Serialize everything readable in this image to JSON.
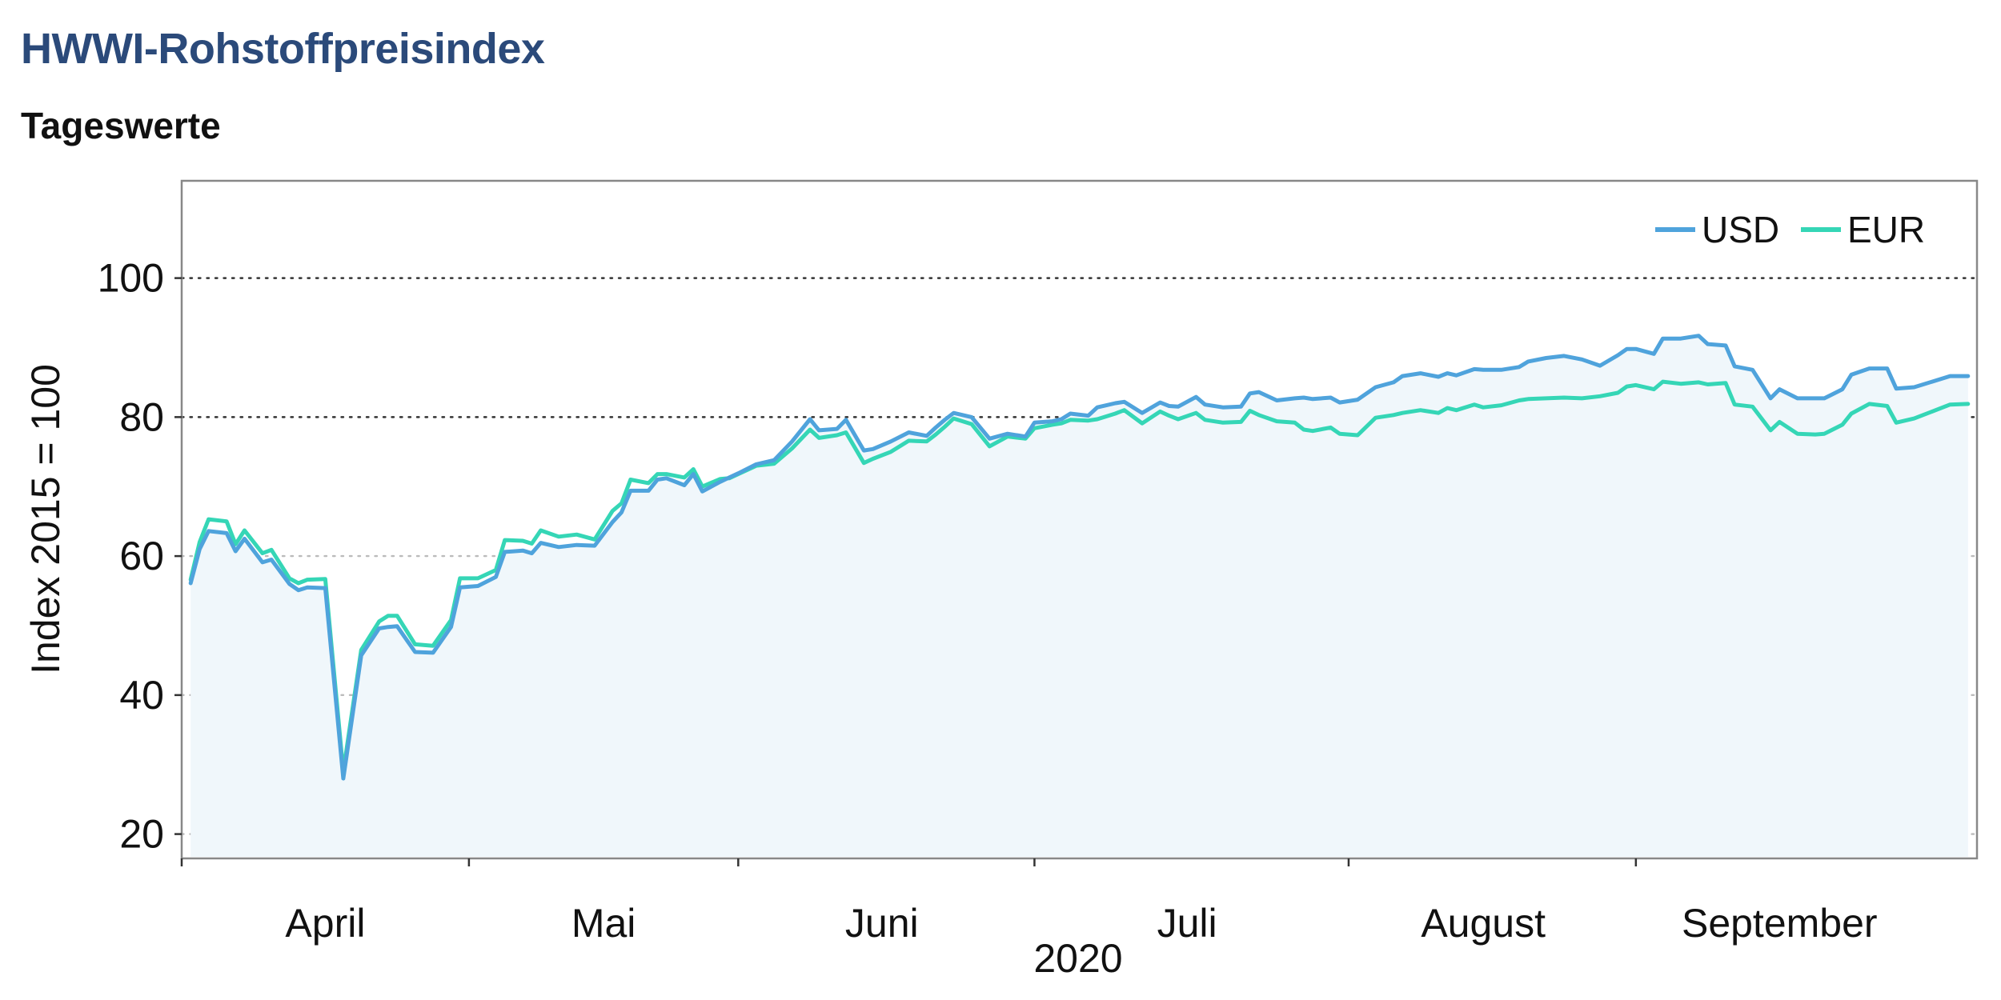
{
  "chart_data": {
    "type": "line",
    "title": "HWWI-Rohstoffpreisindex",
    "subtitle": "Tageswerte",
    "ylabel": "Index 2015 = 100",
    "xlabel": "2020",
    "ylim": [
      16.5,
      114
    ],
    "yticks": [
      20,
      40,
      60,
      80,
      100
    ],
    "xlim": [
      "2020-03-13",
      "2020-09-29"
    ],
    "x_tick_labels": [
      "April",
      "Mai",
      "Juni",
      "Juli",
      "August",
      "September"
    ],
    "x_tick_marks": [
      "2020-03-13",
      "2020-04-14",
      "2020-05-14",
      "2020-06-16",
      "2020-07-21",
      "2020-08-22"
    ],
    "x_label_dates": [
      "2020-03-29",
      "2020-04-29",
      "2020-05-30",
      "2020-07-03",
      "2020-08-05",
      "2020-09-07"
    ],
    "grid": "horizontal dotted",
    "legend": "top-right",
    "area_fill": "#f0f7fb",
    "colors": {
      "USD": "#4fa3dc",
      "EUR": "#35d6b6",
      "title": "#2b4a7a",
      "frame": "#888888"
    },
    "series": [
      {
        "name": "USD",
        "x": [
          "2020-03-14",
          "2020-03-15",
          "2020-03-16",
          "2020-03-18",
          "2020-03-19",
          "2020-03-20",
          "2020-03-22",
          "2020-03-23",
          "2020-03-25",
          "2020-03-26",
          "2020-03-27",
          "2020-03-29",
          "2020-03-31",
          "2020-04-02",
          "2020-04-04",
          "2020-04-05",
          "2020-04-06",
          "2020-04-08",
          "2020-04-10",
          "2020-04-12",
          "2020-04-13",
          "2020-04-15",
          "2020-04-17",
          "2020-04-18",
          "2020-04-20",
          "2020-04-21",
          "2020-04-22",
          "2020-04-24",
          "2020-04-26",
          "2020-04-28",
          "2020-04-30",
          "2020-05-01",
          "2020-05-02",
          "2020-05-04",
          "2020-05-05",
          "2020-05-06",
          "2020-05-08",
          "2020-05-09",
          "2020-05-10",
          "2020-05-12",
          "2020-05-13",
          "2020-05-14",
          "2020-05-16",
          "2020-05-18",
          "2020-05-20",
          "2020-05-22",
          "2020-05-23",
          "2020-05-25",
          "2020-05-26",
          "2020-05-28",
          "2020-05-29",
          "2020-05-31",
          "2020-06-02",
          "2020-06-04",
          "2020-06-05",
          "2020-06-06",
          "2020-06-07",
          "2020-06-09",
          "2020-06-11",
          "2020-06-13",
          "2020-06-15",
          "2020-06-16",
          "2020-06-18",
          "2020-06-19",
          "2020-06-20",
          "2020-06-22",
          "2020-06-23",
          "2020-06-25",
          "2020-06-26",
          "2020-06-28",
          "2020-06-30",
          "2020-07-01",
          "2020-07-02",
          "2020-07-04",
          "2020-07-05",
          "2020-07-07",
          "2020-07-09",
          "2020-07-10",
          "2020-07-11",
          "2020-07-13",
          "2020-07-15",
          "2020-07-16",
          "2020-07-17",
          "2020-07-19",
          "2020-07-20",
          "2020-07-22",
          "2020-07-24",
          "2020-07-26",
          "2020-07-27",
          "2020-07-29",
          "2020-07-31",
          "2020-08-01",
          "2020-08-02",
          "2020-08-04",
          "2020-08-05",
          "2020-08-07",
          "2020-08-09",
          "2020-08-10",
          "2020-08-12",
          "2020-08-14",
          "2020-08-16",
          "2020-08-18",
          "2020-08-20",
          "2020-08-21",
          "2020-08-22",
          "2020-08-24",
          "2020-08-25",
          "2020-08-27",
          "2020-08-29",
          "2020-08-30",
          "2020-09-01",
          "2020-09-02",
          "2020-09-04",
          "2020-09-06",
          "2020-09-07",
          "2020-09-09",
          "2020-09-11",
          "2020-09-12",
          "2020-09-14",
          "2020-09-15",
          "2020-09-17",
          "2020-09-19",
          "2020-09-20",
          "2020-09-22",
          "2020-09-24",
          "2020-09-26",
          "2020-09-28"
        ],
        "values": [
          56.1,
          61.0,
          63.6,
          63.3,
          60.7,
          62.5,
          59.1,
          59.5,
          56.0,
          55.1,
          55.5,
          55.4,
          28.0,
          45.7,
          49.6,
          49.8,
          49.9,
          46.2,
          46.1,
          49.8,
          55.5,
          55.7,
          57.0,
          60.6,
          60.8,
          60.4,
          61.9,
          61.3,
          61.6,
          61.5,
          64.9,
          66.3,
          69.4,
          69.4,
          71.0,
          71.2,
          70.2,
          71.8,
          69.3,
          70.7,
          71.3,
          71.9,
          73.2,
          73.8,
          76.5,
          79.7,
          78.1,
          78.3,
          79.6,
          75.2,
          75.4,
          76.5,
          77.8,
          77.3,
          78.5,
          79.6,
          80.6,
          80.0,
          76.9,
          77.6,
          77.2,
          79.2,
          79.4,
          79.7,
          80.5,
          80.2,
          81.4,
          82.0,
          82.2,
          80.6,
          82.1,
          81.6,
          81.5,
          82.9,
          81.8,
          81.4,
          81.5,
          83.4,
          83.6,
          82.4,
          82.7,
          82.8,
          82.6,
          82.8,
          82.1,
          82.5,
          84.3,
          85.0,
          85.9,
          86.3,
          85.8,
          86.3,
          86.0,
          86.9,
          86.8,
          86.8,
          87.2,
          88.0,
          88.5,
          88.8,
          88.3,
          87.4,
          88.9,
          89.8,
          89.8,
          89.1,
          91.3,
          91.3,
          91.7,
          90.5,
          90.3,
          87.3,
          86.8,
          82.7,
          84.0,
          82.7,
          82.7,
          82.7,
          84.0,
          86.1,
          87.0,
          87.0,
          84.1,
          84.3,
          85.1,
          85.9,
          85.9
        ]
      },
      {
        "name": "EUR",
        "x": [
          "2020-03-14",
          "2020-03-15",
          "2020-03-16",
          "2020-03-18",
          "2020-03-19",
          "2020-03-20",
          "2020-03-22",
          "2020-03-23",
          "2020-03-25",
          "2020-03-26",
          "2020-03-27",
          "2020-03-29",
          "2020-03-31",
          "2020-04-02",
          "2020-04-04",
          "2020-04-05",
          "2020-04-06",
          "2020-04-08",
          "2020-04-10",
          "2020-04-12",
          "2020-04-13",
          "2020-04-15",
          "2020-04-17",
          "2020-04-18",
          "2020-04-20",
          "2020-04-21",
          "2020-04-22",
          "2020-04-24",
          "2020-04-26",
          "2020-04-28",
          "2020-04-30",
          "2020-05-01",
          "2020-05-02",
          "2020-05-04",
          "2020-05-05",
          "2020-05-06",
          "2020-05-08",
          "2020-05-09",
          "2020-05-10",
          "2020-05-12",
          "2020-05-13",
          "2020-05-14",
          "2020-05-16",
          "2020-05-18",
          "2020-05-20",
          "2020-05-22",
          "2020-05-23",
          "2020-05-25",
          "2020-05-26",
          "2020-05-28",
          "2020-05-29",
          "2020-05-31",
          "2020-06-02",
          "2020-06-04",
          "2020-06-05",
          "2020-06-06",
          "2020-06-07",
          "2020-06-09",
          "2020-06-11",
          "2020-06-13",
          "2020-06-15",
          "2020-06-16",
          "2020-06-18",
          "2020-06-19",
          "2020-06-20",
          "2020-06-22",
          "2020-06-23",
          "2020-06-25",
          "2020-06-26",
          "2020-06-28",
          "2020-06-30",
          "2020-07-01",
          "2020-07-02",
          "2020-07-04",
          "2020-07-05",
          "2020-07-07",
          "2020-07-09",
          "2020-07-10",
          "2020-07-11",
          "2020-07-13",
          "2020-07-15",
          "2020-07-16",
          "2020-07-17",
          "2020-07-19",
          "2020-07-20",
          "2020-07-22",
          "2020-07-24",
          "2020-07-26",
          "2020-07-27",
          "2020-07-29",
          "2020-07-31",
          "2020-08-01",
          "2020-08-02",
          "2020-08-04",
          "2020-08-05",
          "2020-08-07",
          "2020-08-09",
          "2020-08-10",
          "2020-08-12",
          "2020-08-14",
          "2020-08-16",
          "2020-08-18",
          "2020-08-20",
          "2020-08-21",
          "2020-08-22",
          "2020-08-24",
          "2020-08-25",
          "2020-08-27",
          "2020-08-29",
          "2020-08-30",
          "2020-09-01",
          "2020-09-02",
          "2020-09-04",
          "2020-09-06",
          "2020-09-07",
          "2020-09-09",
          "2020-09-11",
          "2020-09-12",
          "2020-09-14",
          "2020-09-15",
          "2020-09-17",
          "2020-09-19",
          "2020-09-20",
          "2020-09-22",
          "2020-09-24",
          "2020-09-26",
          "2020-09-28"
        ],
        "values": [
          56.6,
          62.0,
          65.3,
          65.0,
          61.7,
          63.7,
          60.4,
          60.9,
          56.8,
          56.1,
          56.6,
          56.7,
          29.0,
          46.5,
          50.6,
          51.4,
          51.4,
          47.3,
          47.1,
          50.8,
          56.8,
          56.8,
          58.0,
          62.3,
          62.2,
          61.8,
          63.7,
          62.8,
          63.1,
          62.4,
          66.5,
          67.6,
          71.0,
          70.5,
          71.8,
          71.8,
          71.3,
          72.5,
          70.0,
          71.1,
          71.2,
          71.8,
          73.0,
          73.3,
          75.5,
          78.2,
          77.0,
          77.4,
          77.8,
          73.4,
          74.0,
          75.0,
          76.6,
          76.5,
          77.5,
          78.6,
          79.8,
          79.0,
          75.8,
          77.2,
          76.9,
          78.4,
          78.9,
          79.1,
          79.6,
          79.5,
          79.7,
          80.5,
          81.0,
          79.1,
          80.8,
          80.2,
          79.7,
          80.6,
          79.6,
          79.2,
          79.3,
          80.9,
          80.3,
          79.4,
          79.2,
          78.2,
          78.0,
          78.5,
          77.6,
          77.4,
          79.9,
          80.3,
          80.6,
          81.0,
          80.6,
          81.3,
          81.0,
          81.8,
          81.4,
          81.7,
          82.4,
          82.6,
          82.7,
          82.8,
          82.7,
          83.0,
          83.5,
          84.4,
          84.6,
          84.0,
          85.1,
          84.8,
          85.0,
          84.7,
          84.9,
          81.8,
          81.5,
          78.1,
          79.3,
          77.6,
          77.5,
          77.6,
          78.9,
          80.5,
          81.9,
          81.6,
          79.2,
          79.8,
          80.8,
          81.8,
          81.9
        ]
      }
    ]
  }
}
